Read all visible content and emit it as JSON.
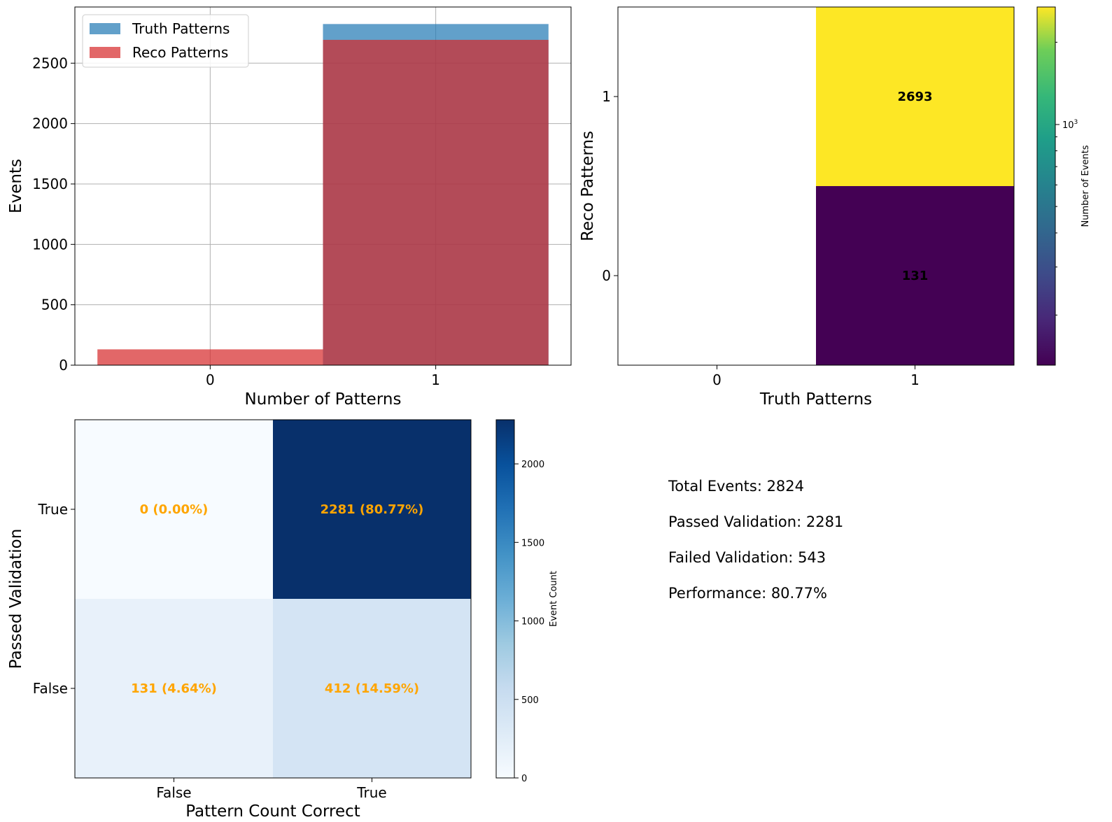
{
  "chart_data": [
    {
      "type": "bar",
      "xlabel": "Number of Patterns",
      "ylabel": "Events",
      "categories": [
        "0",
        "1"
      ],
      "series": [
        {
          "name": "Truth Patterns",
          "values": [
            0,
            2824
          ],
          "color": "#1f77b4"
        },
        {
          "name": "Reco Patterns",
          "values": [
            131,
            2693
          ],
          "color": "#d62728"
        }
      ],
      "ylim": [
        0,
        2965
      ],
      "yticks": [
        0,
        500,
        1000,
        1500,
        2000,
        2500
      ],
      "grid": true,
      "legend": "top-left"
    },
    {
      "type": "heatmap",
      "xlabel": "Truth Patterns",
      "ylabel": "Reco Patterns",
      "x_categories": [
        "0",
        "1"
      ],
      "y_categories": [
        "0",
        "1"
      ],
      "cells": [
        {
          "x": "1",
          "y": "1",
          "value": 2693,
          "label": "2693",
          "color": "#fde725"
        },
        {
          "x": "1",
          "y": "0",
          "value": 131,
          "label": "131",
          "color": "#440154"
        }
      ],
      "colorbar": {
        "label": "Number of Events",
        "scale": "log",
        "tick_base": "10",
        "tick_exp": "3",
        "colormap": "viridis"
      }
    },
    {
      "type": "heatmap",
      "xlabel": "Pattern Count Correct",
      "ylabel": "Passed Validation",
      "x_categories": [
        "False",
        "True"
      ],
      "y_categories": [
        "False",
        "True"
      ],
      "cells": [
        {
          "x": "False",
          "y": "True",
          "value": 0,
          "label": "0 (0.00%)",
          "color": "#f7fbff"
        },
        {
          "x": "True",
          "y": "True",
          "value": 2281,
          "label": "2281 (80.77%)",
          "color": "#08306b"
        },
        {
          "x": "False",
          "y": "False",
          "value": 131,
          "label": "131 (4.64%)",
          "color": "#e8f1fa"
        },
        {
          "x": "True",
          "y": "False",
          "value": 412,
          "label": "412 (14.59%)",
          "color": "#d4e4f4"
        }
      ],
      "label_color": "#ffa500",
      "colorbar": {
        "label": "Event Count",
        "ticks": [
          "0",
          "500",
          "1000",
          "1500",
          "2000"
        ],
        "tick_values": [
          0,
          500,
          1000,
          1500,
          2000
        ],
        "max": 2281,
        "colormap": "Blues"
      }
    }
  ],
  "summary": {
    "lines": [
      "Total Events: 2824",
      "Passed Validation: 2281",
      "Failed Validation: 543",
      "Performance: 80.77%"
    ]
  }
}
